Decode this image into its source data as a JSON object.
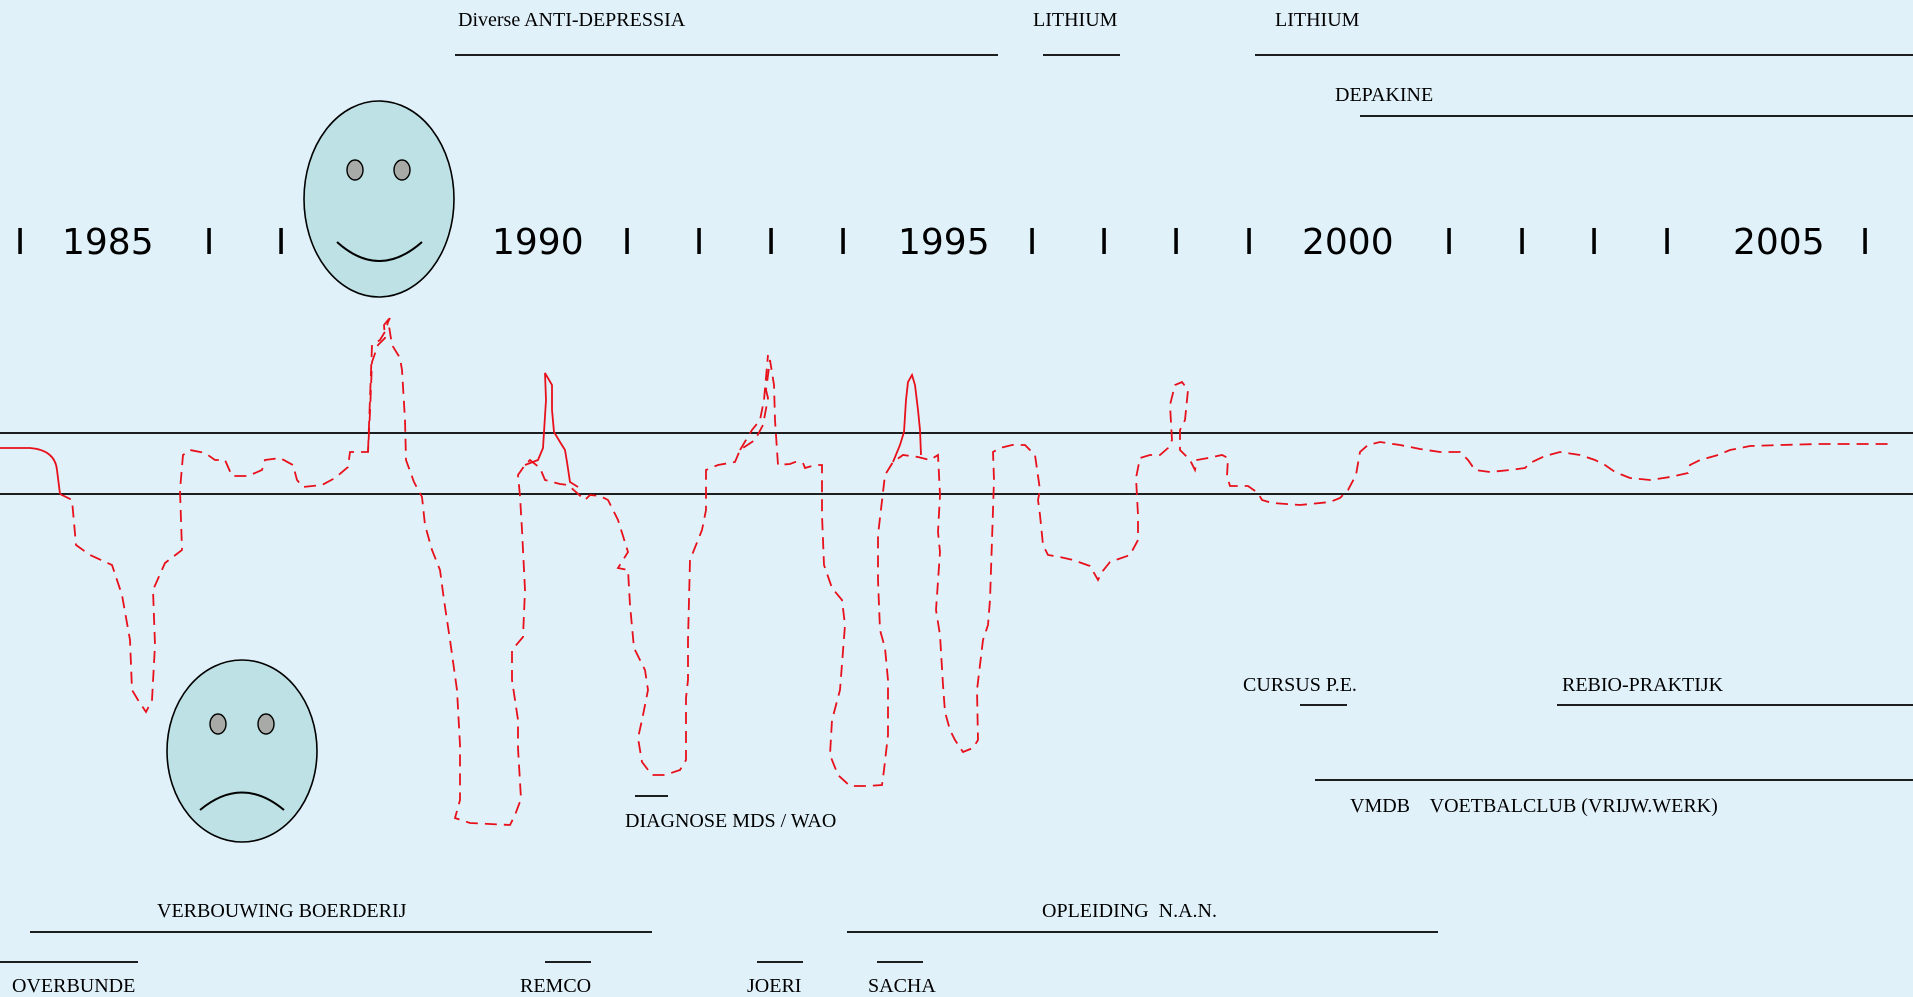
{
  "timeline": {
    "years": [
      "1985",
      "1990",
      "1995",
      "2000",
      "2005"
    ],
    "tick_glyph": "I"
  },
  "top_labels": {
    "anti_depressia": "Diverse ANTI-DEPRESSIA",
    "lithium_1": "LITHIUM",
    "lithium_2": "LITHIUM",
    "depakine": "DEPAKINE"
  },
  "bottom_labels": {
    "diagnose": "DIAGNOSE MDS / WAO",
    "cursus": "CURSUS P.E.",
    "rebio": "REBIO-PRAKTIJK",
    "vmdb": "VMDB    VOETBALCLUB (VRIJW.WERK)",
    "verbouwing": "VERBOUWING BOERDERIJ",
    "opleiding": "OPLEIDING  N.A.N.",
    "overbunde": "OVERBUNDE",
    "remco": "REMCO",
    "joeri": "JOERI",
    "sacha": "SACHA"
  },
  "faces": {
    "happy": "smiley-happy-icon",
    "sad": "smiley-sad-icon"
  },
  "colors": {
    "background": "#e0f1fa",
    "mood_line": "#e8101a",
    "face_fill": "#bde1e4",
    "eye_fill": "#a8aaa8"
  }
}
